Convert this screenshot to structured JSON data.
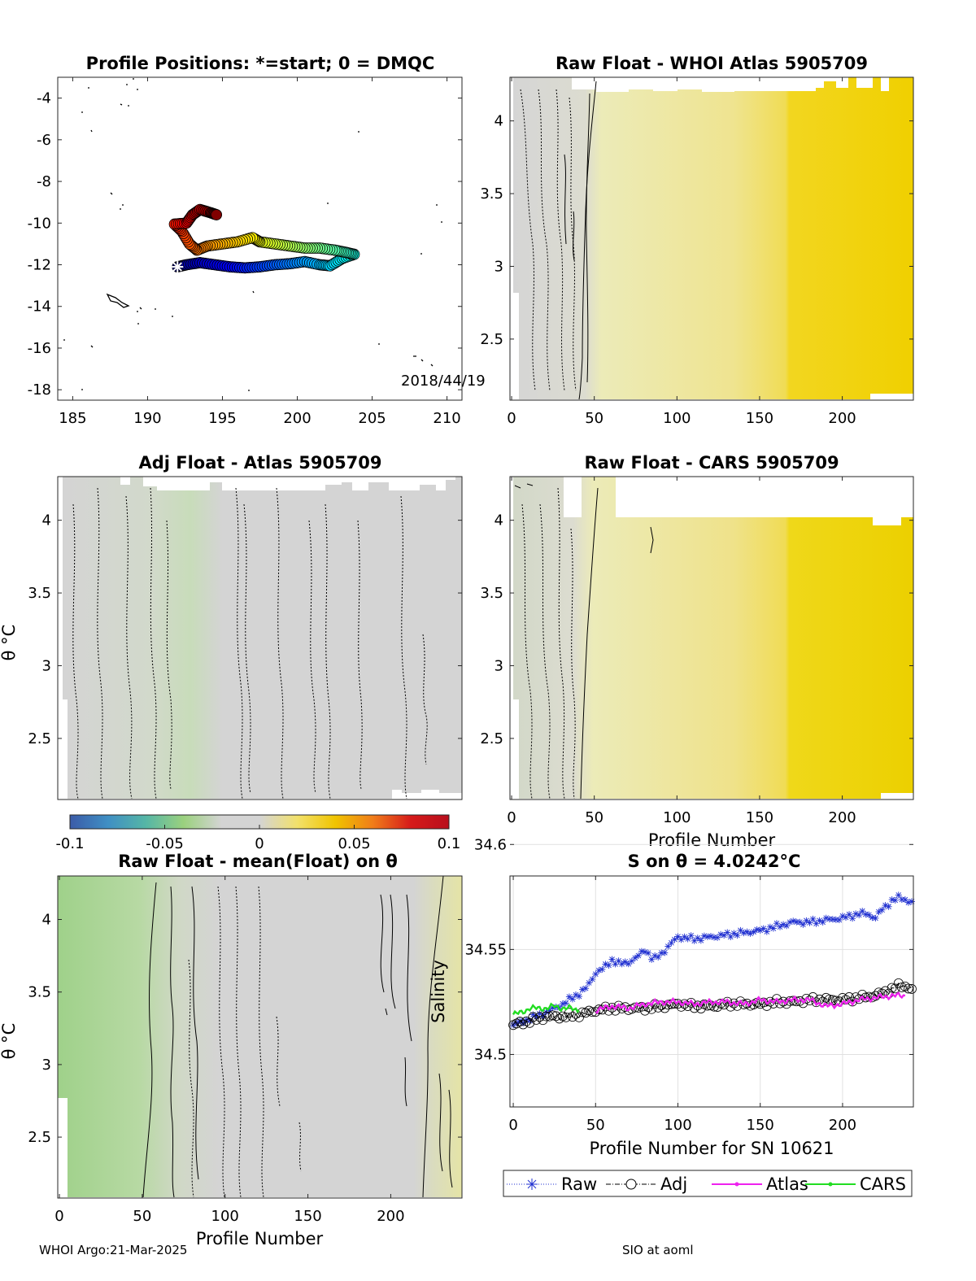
{
  "footer": {
    "left": "WHOI Argo:21-Mar-2025",
    "right": "SIO at aoml"
  },
  "colorbar": {
    "min": -0.1,
    "max": 0.1,
    "ticks": [
      "-0.1",
      "-0.05",
      "0",
      "0.05",
      "0.1"
    ],
    "colormap": [
      "#3b5ba8",
      "#3f8fc4",
      "#55b6a6",
      "#9bd17e",
      "#d4d4d4",
      "#d4d4d4",
      "#f2e16b",
      "#f0c400",
      "#f07c1a",
      "#d61a1a",
      "#b80e1c"
    ]
  },
  "chart_data": [
    {
      "id": "map",
      "type": "scatter",
      "title": "Profile Positions: *=start; 0 = DMQC",
      "xlim": [
        184,
        211
      ],
      "ylim": [
        -18.5,
        -3
      ],
      "xticks": [
        "185",
        "190",
        "195",
        "200",
        "205",
        "210"
      ],
      "yticks": [
        "-4",
        "-6",
        "-8",
        "-10",
        "-12",
        "-14",
        "-16",
        "-18"
      ],
      "annotation": "2018/44/19",
      "start": [
        192,
        -12.1
      ],
      "track": [
        [
          192.0,
          -12.1
        ],
        [
          192.6,
          -12.0
        ],
        [
          193.5,
          -11.9
        ],
        [
          194.5,
          -12.0
        ],
        [
          195.5,
          -12.1
        ],
        [
          196.5,
          -12.15
        ],
        [
          197.5,
          -12.1
        ],
        [
          198.5,
          -12.0
        ],
        [
          199.5,
          -11.95
        ],
        [
          200.5,
          -11.85
        ],
        [
          201.5,
          -12.0
        ],
        [
          202.2,
          -12.05
        ],
        [
          203.0,
          -11.7
        ],
        [
          203.8,
          -11.5
        ],
        [
          203.2,
          -11.4
        ],
        [
          202.5,
          -11.3
        ],
        [
          201.5,
          -11.2
        ],
        [
          200.5,
          -11.2
        ],
        [
          199.5,
          -11.1
        ],
        [
          198.5,
          -11.0
        ],
        [
          197.5,
          -10.9
        ],
        [
          197.0,
          -10.7
        ],
        [
          196.0,
          -10.9
        ],
        [
          195.0,
          -11.0
        ],
        [
          194.0,
          -11.1
        ],
        [
          193.3,
          -11.3
        ],
        [
          192.8,
          -11.0
        ],
        [
          192.3,
          -10.4
        ],
        [
          191.8,
          -10.05
        ],
        [
          192.6,
          -10.0
        ],
        [
          193.0,
          -9.6
        ],
        [
          193.5,
          -9.35
        ],
        [
          194.2,
          -9.5
        ],
        [
          194.6,
          -9.6
        ]
      ]
    },
    {
      "id": "raw-atlas",
      "type": "heatmap",
      "title": "Raw Float - WHOI Atlas  5905709",
      "xlim": [
        -1,
        243
      ],
      "ylim": [
        2.08,
        4.3
      ],
      "xticks": [
        "0",
        "50",
        "100",
        "150",
        "200"
      ],
      "yticks": [
        "2.5",
        "3",
        "3.5",
        "4"
      ],
      "xlabel": "",
      "ylabel": ""
    },
    {
      "id": "adj-atlas",
      "type": "heatmap",
      "title": "Adj Float - Atlas  5905709",
      "xlim": [
        -1,
        243
      ],
      "ylim": [
        2.08,
        4.3
      ],
      "xticks": [],
      "yticks": [
        "2.5",
        "3",
        "3.5",
        "4"
      ],
      "xlabel": "",
      "ylabel": "θ °C"
    },
    {
      "id": "raw-cars",
      "type": "heatmap",
      "title": "Raw Float - CARS  5905709",
      "xlim": [
        -1,
        243
      ],
      "ylim": [
        2.08,
        4.3
      ],
      "xticks": [
        "0",
        "50",
        "100",
        "150",
        "200"
      ],
      "yticks": [
        "2.5",
        "3",
        "3.5",
        "4"
      ],
      "xlabel": "Profile Number",
      "ylabel": ""
    },
    {
      "id": "raw-mean",
      "type": "heatmap",
      "title": "Raw Float - mean(Float) on θ",
      "xlim": [
        -1,
        243
      ],
      "ylim": [
        2.08,
        4.3
      ],
      "xticks": [
        "0",
        "50",
        "100",
        "150",
        "200"
      ],
      "yticks": [
        "2.5",
        "3",
        "3.5",
        "4"
      ],
      "xlabel": "Profile Number",
      "ylabel": "θ °C",
      "side_label": "Salinity"
    },
    {
      "id": "s-on-theta",
      "type": "line",
      "title": "S on θ = 4.0242°C",
      "xlabel": "Profile Number for SN 10621",
      "xlim": [
        -2,
        243
      ],
      "ylim": [
        34.475,
        34.585
      ],
      "xticks": [
        "0",
        "50",
        "100",
        "150",
        "200"
      ],
      "yticks": [
        "34.5",
        "34.55",
        "34.6"
      ],
      "grid": true,
      "legend": "bottom",
      "series": [
        {
          "name": "Raw",
          "color": "#1f2fd0",
          "points": [
            [
              0,
              34.514
            ],
            [
              10,
              34.517
            ],
            [
              20,
              34.52
            ],
            [
              30,
              34.524
            ],
            [
              40,
              34.529
            ],
            [
              45,
              34.532
            ],
            [
              50,
              34.539
            ],
            [
              55,
              34.541
            ],
            [
              60,
              34.545
            ],
            [
              65,
              34.543
            ],
            [
              70,
              34.544
            ],
            [
              75,
              34.546
            ],
            [
              80,
              34.55
            ],
            [
              85,
              34.545
            ],
            [
              90,
              34.548
            ],
            [
              95,
              34.552
            ],
            [
              100,
              34.556
            ],
            [
              110,
              34.555
            ],
            [
              120,
              34.556
            ],
            [
              130,
              34.557
            ],
            [
              140,
              34.558
            ],
            [
              150,
              34.559
            ],
            [
              160,
              34.561
            ],
            [
              170,
              34.563
            ],
            [
              180,
              34.563
            ],
            [
              190,
              34.564
            ],
            [
              200,
              34.565
            ],
            [
              210,
              34.567
            ],
            [
              215,
              34.567
            ],
            [
              220,
              34.565
            ],
            [
              225,
              34.57
            ],
            [
              230,
              34.573
            ],
            [
              235,
              34.575
            ],
            [
              240,
              34.573
            ],
            [
              243,
              34.572
            ]
          ]
        },
        {
          "name": "Adj",
          "color": "#000000",
          "points": [
            [
              0,
              34.514
            ],
            [
              10,
              34.516
            ],
            [
              20,
              34.518
            ],
            [
              30,
              34.518
            ],
            [
              40,
              34.519
            ],
            [
              50,
              34.521
            ],
            [
              60,
              34.522
            ],
            [
              70,
              34.522
            ],
            [
              80,
              34.522
            ],
            [
              90,
              34.523
            ],
            [
              100,
              34.524
            ],
            [
              110,
              34.523
            ],
            [
              120,
              34.523
            ],
            [
              130,
              34.524
            ],
            [
              140,
              34.524
            ],
            [
              150,
              34.524
            ],
            [
              160,
              34.525
            ],
            [
              170,
              34.525
            ],
            [
              180,
              34.526
            ],
            [
              190,
              34.526
            ],
            [
              200,
              34.526
            ],
            [
              210,
              34.527
            ],
            [
              220,
              34.528
            ],
            [
              230,
              34.531
            ],
            [
              235,
              34.533
            ],
            [
              240,
              34.532
            ],
            [
              243,
              34.53
            ]
          ]
        },
        {
          "name": "Atlas",
          "color": "#ee22ee",
          "points": [
            [
              50,
              34.521
            ],
            [
              60,
              34.523
            ],
            [
              70,
              34.522
            ],
            [
              80,
              34.524
            ],
            [
              90,
              34.525
            ],
            [
              100,
              34.525
            ],
            [
              110,
              34.524
            ],
            [
              120,
              34.525
            ],
            [
              130,
              34.525
            ],
            [
              140,
              34.524
            ],
            [
              150,
              34.526
            ],
            [
              160,
              34.525
            ],
            [
              170,
              34.526
            ],
            [
              180,
              34.526
            ],
            [
              190,
              34.523
            ],
            [
              200,
              34.524
            ],
            [
              210,
              34.526
            ],
            [
              220,
              34.527
            ],
            [
              230,
              34.528
            ],
            [
              238,
              34.528
            ]
          ]
        },
        {
          "name": "CARS",
          "color": "#22dd22",
          "points": [
            [
              0,
              34.519
            ],
            [
              5,
              34.52
            ],
            [
              10,
              34.522
            ],
            [
              15,
              34.522
            ],
            [
              20,
              34.522
            ],
            [
              25,
              34.523
            ],
            [
              30,
              34.522
            ],
            [
              35,
              34.522
            ],
            [
              40,
              34.521
            ]
          ]
        }
      ]
    }
  ]
}
